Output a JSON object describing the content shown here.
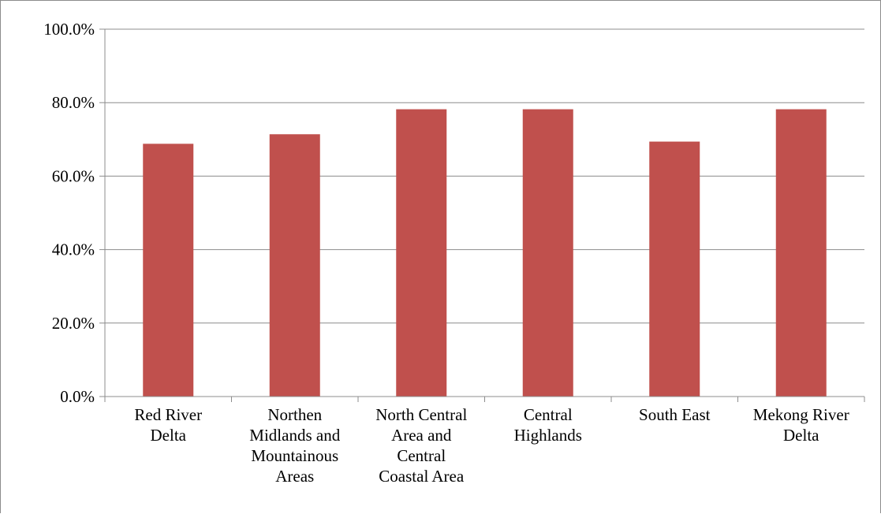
{
  "chart_data": {
    "type": "bar",
    "categories": [
      [
        "Red River",
        "Delta"
      ],
      [
        "Northen",
        "Midlands and",
        "Mountainous",
        "Areas"
      ],
      [
        "North Central",
        "Area and",
        "Central",
        "Coastal Area"
      ],
      [
        "Central",
        "Highlands"
      ],
      [
        "South East"
      ],
      [
        "Mekong River",
        "Delta"
      ]
    ],
    "values": [
      68.8,
      71.4,
      78.2,
      78.2,
      69.4,
      78.2
    ],
    "title": "",
    "xlabel": "",
    "ylabel": "",
    "ylim": [
      0,
      100
    ],
    "yticks": [
      0,
      20,
      40,
      60,
      80,
      100
    ],
    "ytick_labels": [
      "0.0%",
      "20.0%",
      "40.0%",
      "60.0%",
      "80.0%",
      "100.0%"
    ],
    "grid": true,
    "legend": "none",
    "bar_color": "#c0504d"
  }
}
